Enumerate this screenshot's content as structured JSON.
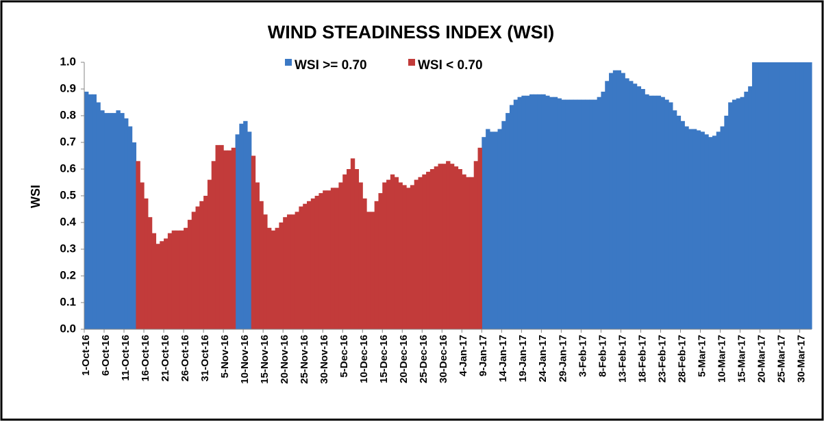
{
  "chart_data": {
    "type": "bar",
    "title": "WIND STEADINESS INDEX (WSI)",
    "ylabel": "WSI",
    "ylim": [
      0,
      1
    ],
    "yticks": [
      {
        "value": 0,
        "label": "0.0"
      },
      0.1,
      0.2,
      0.3,
      0.4,
      0.5,
      0.6,
      0.7,
      0.8,
      0.9,
      {
        "value": 1,
        "label": "1.0"
      }
    ],
    "grid": false,
    "categories": [
      "1-Oct-16",
      null,
      null,
      null,
      null,
      "6-Oct-16",
      null,
      null,
      null,
      null,
      "11-Oct-16",
      null,
      null,
      null,
      null,
      "16-Oct-16",
      null,
      null,
      null,
      null,
      "21-Oct-16",
      null,
      null,
      null,
      null,
      "26-Oct-16",
      null,
      null,
      null,
      null,
      "31-Oct-16",
      null,
      null,
      null,
      null,
      "5-Nov-16",
      null,
      null,
      null,
      null,
      "10-Nov-16",
      null,
      null,
      null,
      null,
      "15-Nov-16",
      null,
      null,
      null,
      null,
      "20-Nov-16",
      null,
      null,
      null,
      null,
      "25-Nov-16",
      null,
      null,
      null,
      null,
      "30-Nov-16",
      null,
      null,
      null,
      null,
      "5-Dec-16",
      null,
      null,
      null,
      null,
      "10-Dec-16",
      null,
      null,
      null,
      null,
      "15-Dec-16",
      null,
      null,
      null,
      null,
      "20-Dec-16",
      null,
      null,
      null,
      null,
      "25-Dec-16",
      null,
      null,
      null,
      null,
      "30-Dec-16",
      null,
      null,
      null,
      null,
      "4-Jan-17",
      null,
      null,
      null,
      null,
      "9-Jan-17",
      null,
      null,
      null,
      null,
      "14-Jan-17",
      null,
      null,
      null,
      null,
      "19-Jan-17",
      null,
      null,
      null,
      null,
      "24-Jan-17",
      null,
      null,
      null,
      null,
      "29-Jan-17",
      null,
      null,
      null,
      null,
      "3-Feb-17",
      null,
      null,
      null,
      null,
      "8-Feb-17",
      null,
      null,
      null,
      null,
      "13-Feb-17",
      null,
      null,
      null,
      null,
      "18-Feb-17",
      null,
      null,
      null,
      null,
      "23-Feb-17",
      null,
      null,
      null,
      null,
      "28-Feb-17",
      null,
      null,
      null,
      null,
      "5-Mar-17",
      null,
      null,
      null,
      null,
      "10-Mar-17",
      null,
      null,
      null,
      null,
      "15-Mar-17",
      null,
      null,
      null,
      null,
      "20-Mar-17",
      null,
      null,
      null,
      null,
      "25-Mar-17",
      null,
      null,
      null,
      null,
      "30-Mar-17",
      null,
      null
    ],
    "series": [
      {
        "name": "WSI >= 0.70",
        "color": "#3b78c4",
        "values": [
          0.89,
          0.88,
          0.88,
          0.85,
          0.82,
          0.81,
          0.81,
          0.81,
          0.82,
          0.81,
          0.79,
          0.76,
          0.7,
          null,
          null,
          null,
          null,
          null,
          null,
          null,
          null,
          null,
          null,
          null,
          null,
          null,
          null,
          null,
          null,
          null,
          null,
          null,
          null,
          null,
          null,
          null,
          null,
          null,
          0.73,
          0.77,
          0.78,
          0.74,
          null,
          null,
          null,
          null,
          null,
          null,
          null,
          null,
          null,
          null,
          null,
          null,
          null,
          null,
          null,
          null,
          null,
          null,
          null,
          null,
          null,
          null,
          null,
          null,
          null,
          null,
          null,
          null,
          null,
          null,
          null,
          null,
          null,
          null,
          null,
          null,
          null,
          null,
          null,
          null,
          null,
          null,
          null,
          null,
          null,
          null,
          null,
          null,
          null,
          null,
          null,
          null,
          null,
          null,
          null,
          null,
          null,
          null,
          0.72,
          0.75,
          0.74,
          0.74,
          0.75,
          0.78,
          0.81,
          0.84,
          0.86,
          0.87,
          0.875,
          0.875,
          0.88,
          0.88,
          0.88,
          0.88,
          0.875,
          0.87,
          0.87,
          0.865,
          0.86,
          0.86,
          0.86,
          0.86,
          0.86,
          0.86,
          0.86,
          0.86,
          0.86,
          0.87,
          0.89,
          0.93,
          0.96,
          0.97,
          0.97,
          0.96,
          0.94,
          0.93,
          0.92,
          0.91,
          0.9,
          0.88,
          0.875,
          0.875,
          0.875,
          0.87,
          0.86,
          0.85,
          0.82,
          0.8,
          0.78,
          0.76,
          0.75,
          0.75,
          0.745,
          0.74,
          0.73,
          0.72,
          0.725,
          0.74,
          0.76,
          0.8,
          0.85,
          0.86,
          0.865,
          0.87,
          0.89,
          0.91,
          1.0,
          1.0,
          1.0,
          1.0,
          1.0,
          1.0,
          1.0,
          1.0,
          1.0,
          1.0,
          1.0,
          1.0,
          1.0,
          1.0,
          1.0
        ]
      },
      {
        "name": "WSI < 0.70",
        "color": "#c23b3a",
        "values": [
          null,
          null,
          null,
          null,
          null,
          null,
          null,
          null,
          null,
          null,
          null,
          null,
          null,
          0.63,
          0.55,
          0.49,
          0.42,
          0.36,
          0.32,
          0.33,
          0.34,
          0.36,
          0.37,
          0.37,
          0.37,
          0.38,
          0.41,
          0.44,
          0.46,
          0.48,
          0.5,
          0.56,
          0.63,
          0.69,
          0.69,
          0.67,
          0.67,
          0.68,
          null,
          null,
          null,
          null,
          0.65,
          0.55,
          0.48,
          0.43,
          0.38,
          0.37,
          0.38,
          0.4,
          0.42,
          0.43,
          0.43,
          0.44,
          0.46,
          0.47,
          0.48,
          0.49,
          0.5,
          0.51,
          0.52,
          0.52,
          0.53,
          0.53,
          0.55,
          0.58,
          0.6,
          0.64,
          0.6,
          0.55,
          0.49,
          0.44,
          0.44,
          0.48,
          0.51,
          0.55,
          0.56,
          0.58,
          0.57,
          0.55,
          0.54,
          0.53,
          0.54,
          0.56,
          0.57,
          0.58,
          0.59,
          0.6,
          0.61,
          0.62,
          0.62,
          0.63,
          0.62,
          0.61,
          0.6,
          0.58,
          0.57,
          0.57,
          0.63,
          0.68,
          null,
          null,
          null,
          null,
          null,
          null,
          null,
          null,
          null,
          null,
          null,
          null,
          null,
          null,
          null,
          null,
          null,
          null,
          null,
          null,
          null,
          null,
          null,
          null,
          null,
          null,
          null,
          null,
          null,
          null,
          null,
          null,
          null,
          null,
          null,
          null,
          null,
          null,
          null,
          null,
          null,
          null,
          null,
          null,
          null,
          null,
          null,
          null,
          null,
          null,
          null,
          null,
          null,
          null,
          null,
          null,
          null,
          null,
          null,
          null,
          null,
          null,
          null,
          null,
          null,
          null,
          null,
          null,
          null,
          null,
          null,
          null,
          null,
          null,
          null,
          null,
          null,
          null,
          null,
          null,
          null,
          null,
          null
        ]
      }
    ]
  }
}
